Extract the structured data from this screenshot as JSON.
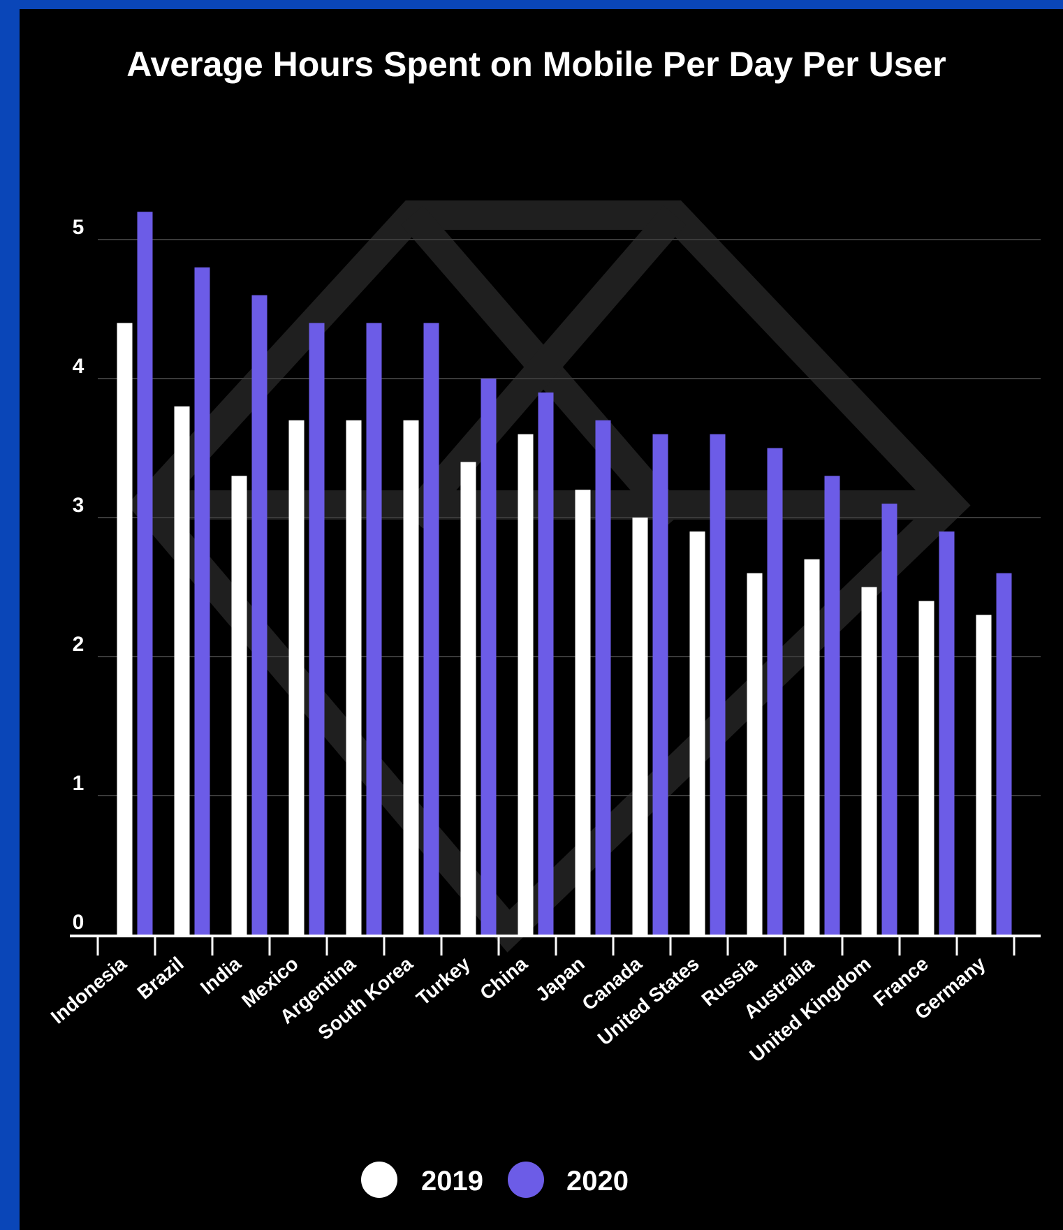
{
  "chart_data": {
    "type": "bar",
    "title": "Average Hours Spent on Mobile Per Day Per User",
    "xlabel": "",
    "ylabel": "",
    "ylim": [
      0,
      5.2
    ],
    "yticks": [
      "0",
      "1",
      "2",
      "3",
      "4",
      "5"
    ],
    "grid": true,
    "legend_position": "bottom",
    "categories": [
      "Indonesia",
      "Brazil",
      "India",
      "Mexico",
      "Argentina",
      "South Korea",
      "Turkey",
      "China",
      "Japan",
      "Canada",
      "United States",
      "Russia",
      "Australia",
      "United Kingdom",
      "France",
      "Germany"
    ],
    "series": [
      {
        "name": "2019",
        "color": "#ffffff",
        "values": [
          4.4,
          3.8,
          3.3,
          3.7,
          3.7,
          3.7,
          3.4,
          3.6,
          3.2,
          3.0,
          2.9,
          2.6,
          2.7,
          2.5,
          2.4,
          2.3
        ]
      },
      {
        "name": "2020",
        "color": "#6c5ce7",
        "values": [
          5.2,
          4.8,
          4.6,
          4.4,
          4.4,
          4.4,
          4.0,
          3.9,
          3.7,
          3.6,
          3.6,
          3.5,
          3.3,
          3.1,
          2.9,
          2.6
        ]
      }
    ]
  }
}
